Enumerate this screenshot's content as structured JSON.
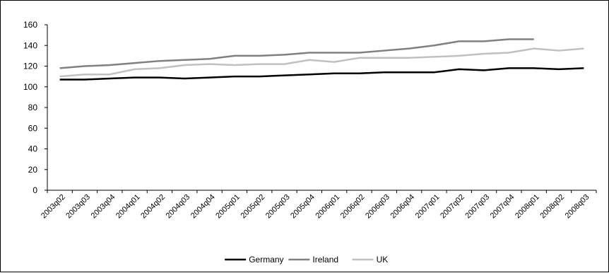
{
  "chart_data": {
    "type": "line",
    "title": "",
    "xlabel": "",
    "ylabel": "",
    "ylim": [
      0,
      160
    ],
    "yticks": [
      0,
      20,
      40,
      60,
      80,
      100,
      120,
      140,
      160
    ],
    "grid": false,
    "legend_position": "bottom",
    "categories": [
      "2003q02",
      "2003q03",
      "2003q04",
      "2004q01",
      "2004q02",
      "2004q03",
      "2004q04",
      "2005q01",
      "2005q02",
      "2005q03",
      "2005q04",
      "2006q01",
      "2006q02",
      "2006q03",
      "2006q04",
      "2007q01",
      "2007q02",
      "2007q03",
      "2007q04",
      "2008q01",
      "2008q02",
      "2008q03"
    ],
    "series": [
      {
        "name": "Germany",
        "color": "#000000",
        "values": [
          107,
          107,
          108,
          109,
          109,
          108,
          109,
          110,
          110,
          111,
          112,
          113,
          113,
          114,
          114,
          114,
          117,
          116,
          118,
          118,
          117,
          118
        ]
      },
      {
        "name": "Ireland",
        "color": "#808080",
        "values": [
          118,
          120,
          121,
          123,
          125,
          126,
          127,
          130,
          130,
          131,
          133,
          133,
          133,
          135,
          137,
          140,
          144,
          144,
          146,
          146,
          null,
          null
        ]
      },
      {
        "name": "UK",
        "color": "#c0c0c0",
        "values": [
          110,
          112,
          112,
          117,
          118,
          121,
          122,
          121,
          122,
          122,
          126,
          124,
          128,
          128,
          128,
          129,
          130,
          132,
          133,
          137,
          135,
          137
        ]
      }
    ]
  }
}
